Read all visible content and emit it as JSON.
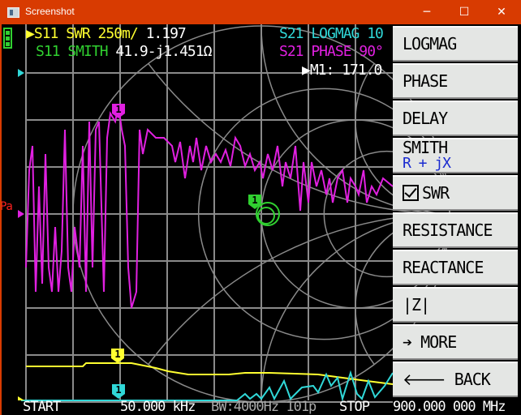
{
  "window": {
    "title": "Screenshot",
    "minimize_icon": "minimize-icon",
    "maximize_icon": "maximize-icon",
    "close_icon": "close-icon"
  },
  "traces": {
    "s11_swr": {
      "label": "S11 SWR 250m/",
      "value": "1.197",
      "color": "#ffff30"
    },
    "s11_smith": {
      "label": "S11 SMITH",
      "value": "41.9-j1.451Ω",
      "color": "#30d030"
    },
    "s21_logmag": {
      "label": "S21 LOGMAG 10",
      "color": "#30d8d8"
    },
    "s21_phase": {
      "label": "S21 PHASE 90°",
      "color": "#e020e0"
    },
    "marker": {
      "label": "M1:",
      "value": "171.0"
    }
  },
  "ref_label": "Pa",
  "marker_number": "1",
  "battery_icon": "battery-icon",
  "menu": {
    "items": [
      {
        "label": "LOGMAG"
      },
      {
        "label": "PHASE"
      },
      {
        "label": "DELAY"
      },
      {
        "label": "SMITH",
        "sub": "R + jX"
      },
      {
        "label": "SWR",
        "checked": true
      },
      {
        "label": "RESISTANCE"
      },
      {
        "label": "REACTANCE"
      },
      {
        "label": "|Z|"
      },
      {
        "label": "MORE",
        "icon": "arrow-right-icon"
      },
      {
        "label": "BACK",
        "icon": "arrow-left-icon"
      }
    ]
  },
  "footer": {
    "start_label": "START",
    "start_value": "50.000 kHz",
    "bw": "BW:4000Hz 101p",
    "stop_label": "STOP",
    "stop_value": "900.000 000 MHz"
  }
}
